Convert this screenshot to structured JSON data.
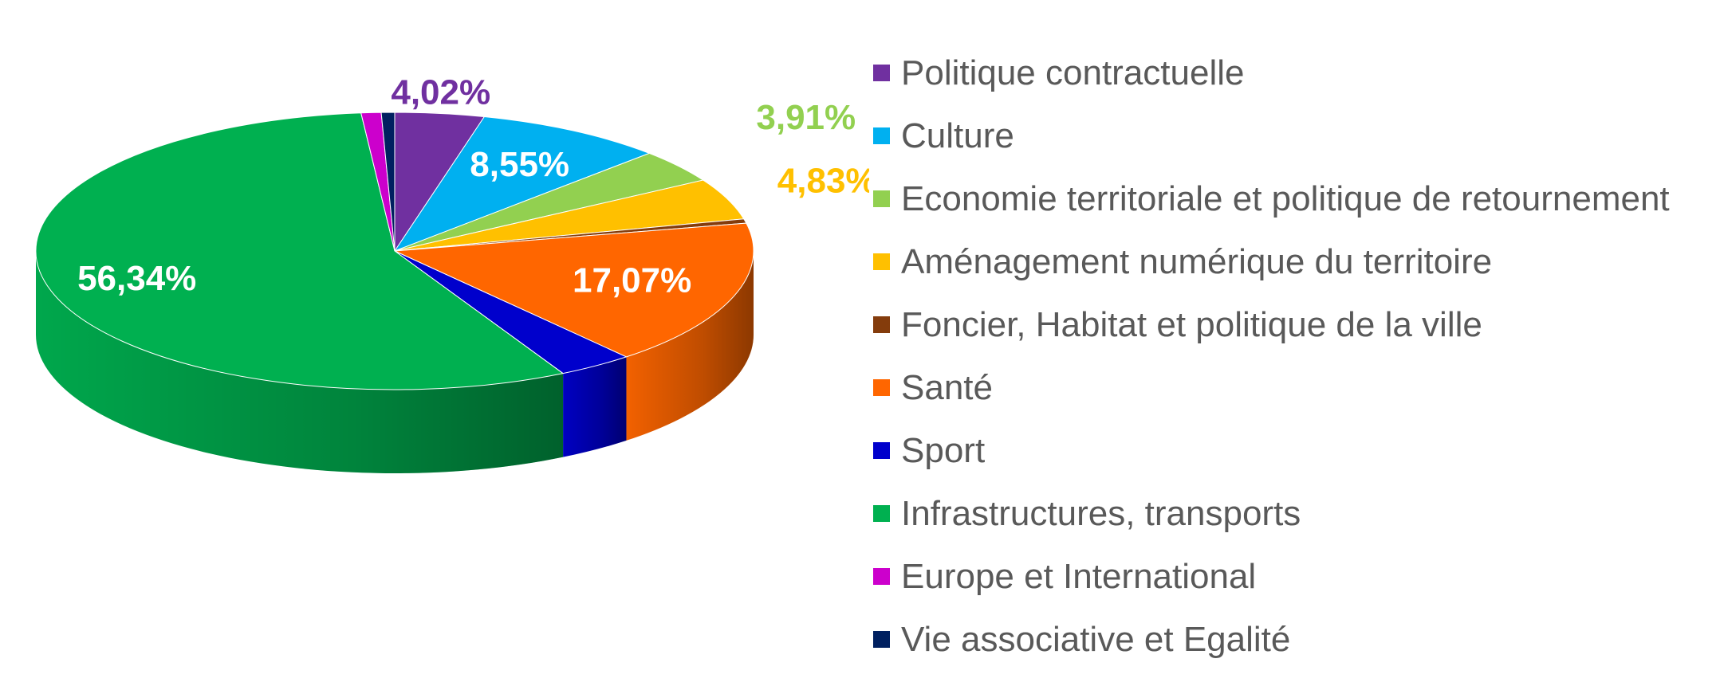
{
  "chart_data": {
    "type": "pie",
    "title": "",
    "legend_position": "right",
    "categories": [
      "Politique contractuelle",
      "Culture",
      "Economie territoriale et politique de retournement",
      "Aménagement numérique du territoire",
      "Foncier, Habitat et politique de la ville",
      "Santé",
      "Sport",
      "Infrastructures, transports",
      "Europe et International",
      "Vie associative et Egalité"
    ],
    "values": [
      4.02,
      8.55,
      3.91,
      4.83,
      0.5,
      17.07,
      3.4,
      56.34,
      0.9,
      0.6
    ],
    "data_labels": [
      "4,02%",
      "8,55%",
      "3,91%",
      "4,83%",
      "",
      "17,07%",
      "",
      "56,34%",
      "",
      ""
    ],
    "colors": [
      "#7030A0",
      "#00B0F0",
      "#92D050",
      "#FFC000",
      "#843C0C",
      "#FF6600",
      "#0000CC",
      "#00B050",
      "#CC00CC",
      "#002060"
    ]
  }
}
